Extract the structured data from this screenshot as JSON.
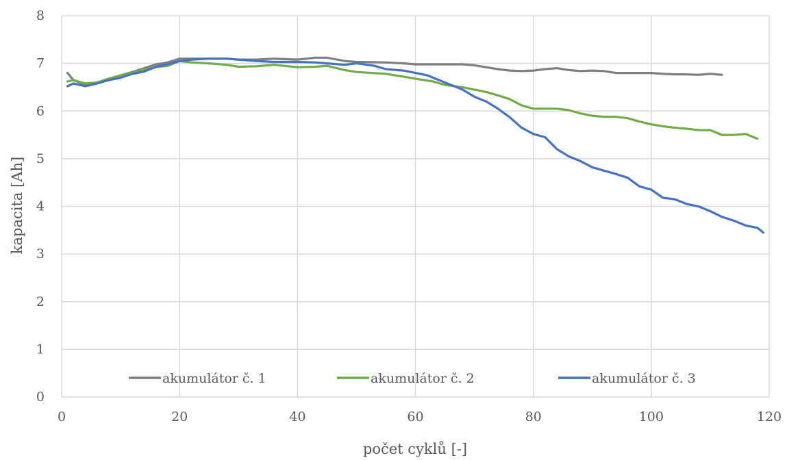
{
  "chart_data": {
    "type": "line",
    "xlabel": "počet cyklů [-]",
    "ylabel": "kapacita [Ah]",
    "xlim": [
      0,
      120
    ],
    "ylim": [
      0,
      8
    ],
    "xticks": [
      "0",
      "20",
      "40",
      "60",
      "80",
      "100",
      "120"
    ],
    "yticks": [
      "0",
      "1",
      "2",
      "3",
      "4",
      "5",
      "6",
      "7",
      "8"
    ],
    "grid": true,
    "legend_position": "bottom-inside",
    "series": [
      {
        "name": "akumulátor č. 1",
        "color": "#7f7f7f",
        "x": [
          1,
          2,
          4,
          6,
          8,
          10,
          12,
          14,
          16,
          18,
          20,
          22,
          25,
          28,
          30,
          33,
          36,
          40,
          43,
          45,
          48,
          50,
          55,
          58,
          60,
          63,
          65,
          68,
          70,
          72,
          74,
          76,
          78,
          80,
          82,
          84,
          86,
          88,
          90,
          92,
          94,
          96,
          98,
          100,
          102,
          104,
          106,
          108,
          110,
          112
        ],
        "values": [
          6.8,
          6.65,
          6.55,
          6.6,
          6.68,
          6.75,
          6.82,
          6.9,
          6.98,
          7.02,
          7.1,
          7.1,
          7.1,
          7.1,
          7.08,
          7.08,
          7.1,
          7.08,
          7.12,
          7.12,
          7.05,
          7.03,
          7.02,
          7.0,
          6.98,
          6.98,
          6.98,
          6.98,
          6.96,
          6.92,
          6.88,
          6.85,
          6.84,
          6.85,
          6.88,
          6.9,
          6.86,
          6.84,
          6.85,
          6.84,
          6.8,
          6.8,
          6.8,
          6.8,
          6.78,
          6.77,
          6.77,
          6.76,
          6.78,
          6.76
        ]
      },
      {
        "name": "akumulátor č. 2",
        "color": "#70ad47",
        "x": [
          1,
          2,
          4,
          6,
          8,
          10,
          12,
          14,
          16,
          18,
          20,
          22,
          25,
          28,
          30,
          33,
          36,
          40,
          43,
          45,
          48,
          50,
          55,
          58,
          60,
          63,
          65,
          68,
          70,
          72,
          74,
          76,
          78,
          80,
          82,
          84,
          86,
          88,
          90,
          92,
          94,
          96,
          98,
          100,
          102,
          104,
          106,
          108,
          110,
          112,
          114,
          116,
          118
        ],
        "values": [
          6.62,
          6.65,
          6.58,
          6.6,
          6.68,
          6.75,
          6.8,
          6.87,
          6.92,
          6.95,
          7.05,
          7.02,
          7.0,
          6.97,
          6.93,
          6.94,
          6.97,
          6.92,
          6.93,
          6.95,
          6.86,
          6.82,
          6.78,
          6.72,
          6.68,
          6.62,
          6.55,
          6.5,
          6.45,
          6.4,
          6.33,
          6.25,
          6.12,
          6.05,
          6.05,
          6.05,
          6.02,
          5.95,
          5.9,
          5.88,
          5.88,
          5.85,
          5.78,
          5.72,
          5.68,
          5.65,
          5.63,
          5.6,
          5.6,
          5.5,
          5.5,
          5.52,
          5.42
        ]
      },
      {
        "name": "akumulátor č. 3",
        "color": "#4472c4",
        "x": [
          1,
          2,
          4,
          6,
          8,
          10,
          12,
          14,
          16,
          18,
          20,
          22,
          25,
          28,
          30,
          33,
          36,
          40,
          43,
          45,
          48,
          50,
          53,
          55,
          58,
          60,
          62,
          65,
          68,
          70,
          72,
          74,
          76,
          78,
          80,
          82,
          84,
          86,
          88,
          90,
          92,
          94,
          96,
          98,
          100,
          102,
          104,
          106,
          108,
          110,
          112,
          114,
          116,
          118,
          119
        ],
        "values": [
          6.52,
          6.58,
          6.52,
          6.58,
          6.65,
          6.7,
          6.78,
          6.83,
          6.93,
          6.98,
          7.05,
          7.08,
          7.1,
          7.1,
          7.08,
          7.05,
          7.03,
          7.03,
          7.02,
          7.0,
          6.97,
          7.0,
          6.95,
          6.88,
          6.85,
          6.8,
          6.75,
          6.6,
          6.45,
          6.3,
          6.2,
          6.05,
          5.87,
          5.65,
          5.52,
          5.45,
          5.2,
          5.05,
          4.95,
          4.82,
          4.75,
          4.68,
          4.6,
          4.42,
          4.35,
          4.18,
          4.15,
          4.05,
          4.0,
          3.9,
          3.78,
          3.7,
          3.6,
          3.55,
          3.45
        ]
      }
    ]
  }
}
